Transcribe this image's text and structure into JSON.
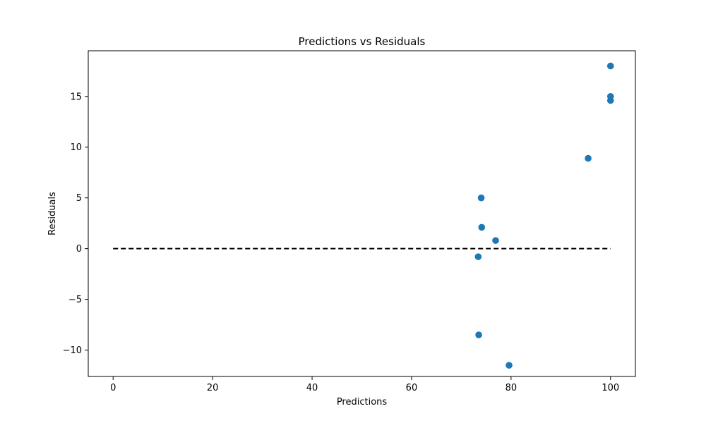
{
  "chart_data": {
    "type": "scatter",
    "title": "Predictions vs Residuals",
    "xlabel": "Predictions",
    "ylabel": "Residuals",
    "xlim": [
      -5,
      105
    ],
    "ylim": [
      -12.6,
      19.5
    ],
    "xticks": [
      0,
      20,
      40,
      60,
      80,
      100
    ],
    "xtick_labels": [
      "0",
      "20",
      "40",
      "60",
      "80",
      "100"
    ],
    "yticks": [
      -10,
      -5,
      0,
      5,
      10,
      15
    ],
    "ytick_labels": [
      "−10",
      "−5",
      "0",
      "5",
      "10",
      "15"
    ],
    "grid": false,
    "series": [
      {
        "color": "#1f77b4",
        "points": [
          {
            "x": 100.0,
            "y": 18.0
          },
          {
            "x": 100.0,
            "y": 15.0
          },
          {
            "x": 100.0,
            "y": 14.6
          },
          {
            "x": 95.5,
            "y": 8.9
          },
          {
            "x": 74.0,
            "y": 5.0
          },
          {
            "x": 74.1,
            "y": 2.1
          },
          {
            "x": 76.9,
            "y": 0.8
          },
          {
            "x": 73.4,
            "y": -0.8
          },
          {
            "x": 73.5,
            "y": -8.5
          },
          {
            "x": 79.6,
            "y": -11.5
          }
        ]
      }
    ],
    "reference_line": {
      "x": [
        0,
        100
      ],
      "y": [
        0,
        0
      ],
      "style": "dashed",
      "color": "#000000"
    }
  }
}
